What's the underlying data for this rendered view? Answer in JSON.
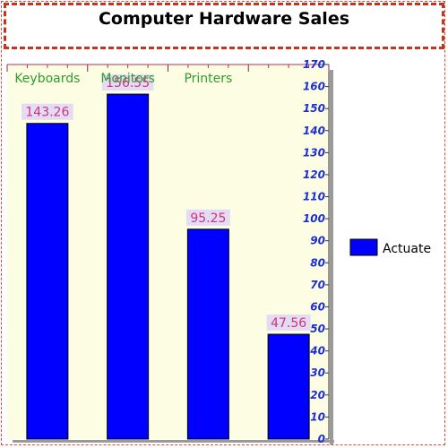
{
  "chart_data": {
    "type": "bar",
    "title": "Computer Hardware Sales",
    "categories": [
      "Keyboards",
      "Monitors",
      "Printers",
      ""
    ],
    "series": [
      {
        "name": "Actuate",
        "values": [
          143.26,
          156.55,
          95.25,
          47.56
        ]
      }
    ],
    "data_labels": [
      "143.26",
      "156.55",
      "95.25",
      "47.56"
    ],
    "y_ticks": [
      0,
      10,
      20,
      30,
      40,
      50,
      60,
      70,
      80,
      90,
      100,
      110,
      120,
      130,
      140,
      150,
      160,
      170
    ],
    "ylim": [
      0,
      170
    ],
    "y_axis_side": "right",
    "x_axis_side": "top",
    "grid": false,
    "legend_position": "right",
    "colors": {
      "bar": "#0000ff",
      "plot_background": "#fdfde4",
      "category_label": "#2e9d2e",
      "data_label": "#d2337a",
      "data_label_background": "#e2dcf4",
      "tick_label": "#1c2fd6",
      "frame": "#c4351f"
    }
  }
}
